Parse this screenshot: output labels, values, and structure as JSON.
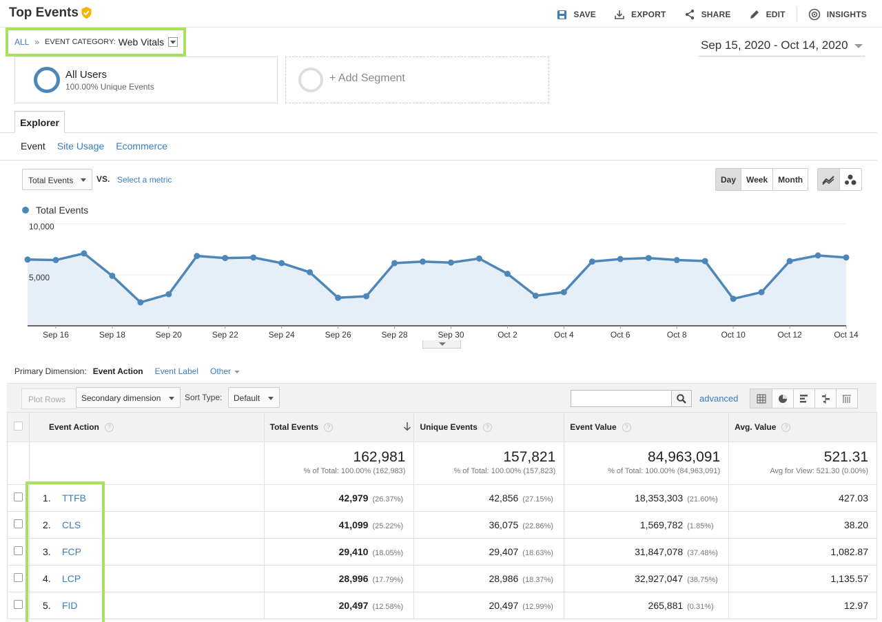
{
  "header": {
    "title": "Top Events",
    "actions": {
      "save": "SAVE",
      "export": "EXPORT",
      "share": "SHARE",
      "edit": "EDIT",
      "insights": "INSIGHTS"
    }
  },
  "breadcrumb": {
    "all": "ALL",
    "separator": "»",
    "category_label": "EVENT CATEGORY:",
    "category_value": "Web Vitals"
  },
  "date_range": "Sep 15, 2020 - Oct 14, 2020",
  "segments": {
    "active_name": "All Users",
    "active_sub": "100.00% Unique Events",
    "add": "+ Add Segment"
  },
  "tabs": {
    "main": "Explorer",
    "sub": [
      "Event",
      "Site Usage",
      "Ecommerce"
    ]
  },
  "metric": {
    "selected": "Total Events",
    "vs": "VS.",
    "select_metric": "Select a metric"
  },
  "granularity": [
    "Day",
    "Week",
    "Month"
  ],
  "legend": "Total Events",
  "chart_data": {
    "type": "line",
    "series": [
      {
        "name": "Total Events",
        "values": [
          6500,
          6450,
          7100,
          4900,
          2300,
          3100,
          6850,
          6650,
          6700,
          6150,
          5250,
          2750,
          2900,
          6150,
          6300,
          6200,
          6600,
          5100,
          2950,
          3300,
          6300,
          6550,
          6650,
          6450,
          6350,
          2650,
          3300,
          6350,
          6900,
          6700
        ]
      }
    ],
    "x_tick_labels": [
      "Sep 16",
      "Sep 18",
      "Sep 20",
      "Sep 22",
      "Sep 24",
      "Sep 26",
      "Sep 28",
      "Sep 30",
      "Oct 2",
      "Oct 4",
      "Oct 6",
      "Oct 8",
      "Oct 10",
      "Oct 12",
      "Oct 14"
    ],
    "y_tick_labels": [
      "10,000",
      "5,000"
    ],
    "ylim": [
      0,
      10000
    ],
    "color": "#4d87b9",
    "fill": "#e6eef8"
  },
  "primary_dimension": {
    "label": "Primary Dimension:",
    "active": "Event Action",
    "options": [
      "Event Label",
      "Other"
    ]
  },
  "toolbar": {
    "plot_rows": "Plot Rows",
    "secondary": "Secondary dimension",
    "sort_label": "Sort Type:",
    "sort_value": "Default",
    "advanced": "advanced"
  },
  "table": {
    "headers": [
      "Event Action",
      "Total Events",
      "Unique Events",
      "Event Value",
      "Avg. Value"
    ],
    "totals": {
      "total_events": "162,981",
      "total_events_sub": "% of Total: 100.00% (162,983)",
      "unique_events": "157,821",
      "unique_events_sub": "% of Total: 100.00% (157,823)",
      "event_value": "84,963,091",
      "event_value_sub": "% of Total: 100.00% (84,963,091)",
      "avg_value": "521.31",
      "avg_value_sub": "Avg for View: 521.30 (0.00%)"
    },
    "rows": [
      {
        "idx": "1.",
        "name": "TTFB",
        "total": "42,979",
        "total_pct": "(26.37%)",
        "unique": "42,856",
        "unique_pct": "(27.15%)",
        "value": "18,353,303",
        "value_pct": "(21.60%)",
        "avg": "427.03"
      },
      {
        "idx": "2.",
        "name": "CLS",
        "total": "41,099",
        "total_pct": "(25.22%)",
        "unique": "36,075",
        "unique_pct": "(22.86%)",
        "value": "1,569,782",
        "value_pct": "(1.85%)",
        "avg": "38.20"
      },
      {
        "idx": "3.",
        "name": "FCP",
        "total": "29,410",
        "total_pct": "(18.05%)",
        "unique": "29,407",
        "unique_pct": "(18.63%)",
        "value": "31,847,078",
        "value_pct": "(37.48%)",
        "avg": "1,082.87"
      },
      {
        "idx": "4.",
        "name": "LCP",
        "total": "28,996",
        "total_pct": "(17.79%)",
        "unique": "28,986",
        "unique_pct": "(18.37%)",
        "value": "32,927,047",
        "value_pct": "(38.75%)",
        "avg": "1,135.57"
      },
      {
        "idx": "5.",
        "name": "FID",
        "total": "20,497",
        "total_pct": "(12.58%)",
        "unique": "20,497",
        "unique_pct": "(12.99%)",
        "value": "265,881",
        "value_pct": "(0.31%)",
        "avg": "12.97"
      }
    ]
  }
}
